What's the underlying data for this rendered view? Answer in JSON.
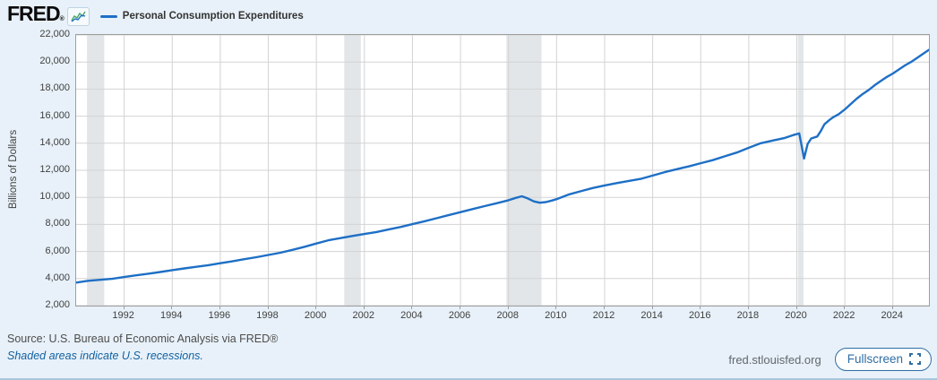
{
  "header": {
    "logo": "FRED",
    "registered": "®",
    "legend": {
      "series_label": "Personal Consumption Expenditures"
    }
  },
  "chart_data": {
    "type": "line",
    "title": "Personal Consumption Expenditures",
    "ylabel": "Billions of Dollars",
    "xlabel": "",
    "x_range": [
      1990.0,
      2025.5
    ],
    "y_range": [
      2000,
      22000
    ],
    "grid": true,
    "legend_position": "top-left",
    "line_color": "#1e6fc5",
    "grid_color": "#d3d3d3",
    "recession_color": "#e2e6e9",
    "plot_bg": "#ffffff",
    "y_ticks": [
      {
        "value": 2000,
        "label": "2,000"
      },
      {
        "value": 4000,
        "label": "4,000"
      },
      {
        "value": 6000,
        "label": "6,000"
      },
      {
        "value": 8000,
        "label": "8,000"
      },
      {
        "value": 10000,
        "label": "10,000"
      },
      {
        "value": 12000,
        "label": "12,000"
      },
      {
        "value": 14000,
        "label": "14,000"
      },
      {
        "value": 16000,
        "label": "16,000"
      },
      {
        "value": 18000,
        "label": "18,000"
      },
      {
        "value": 20000,
        "label": "20,000"
      },
      {
        "value": 22000,
        "label": "22,000"
      }
    ],
    "x_ticks": [
      {
        "value": 1992,
        "label": "1992"
      },
      {
        "value": 1994,
        "label": "1994"
      },
      {
        "value": 1996,
        "label": "1996"
      },
      {
        "value": 1998,
        "label": "1998"
      },
      {
        "value": 2000,
        "label": "2000"
      },
      {
        "value": 2002,
        "label": "2002"
      },
      {
        "value": 2004,
        "label": "2004"
      },
      {
        "value": 2006,
        "label": "2006"
      },
      {
        "value": 2008,
        "label": "2008"
      },
      {
        "value": 2010,
        "label": "2010"
      },
      {
        "value": 2012,
        "label": "2012"
      },
      {
        "value": 2014,
        "label": "2014"
      },
      {
        "value": 2016,
        "label": "2016"
      },
      {
        "value": 2018,
        "label": "2018"
      },
      {
        "value": 2020,
        "label": "2020"
      },
      {
        "value": 2022,
        "label": "2022"
      },
      {
        "value": 2024,
        "label": "2024"
      }
    ],
    "recession_bands": [
      [
        1990.45,
        1991.17
      ],
      [
        2001.16,
        2001.85
      ],
      [
        2007.91,
        2009.37
      ],
      [
        2020.05,
        2020.28
      ]
    ],
    "series": [
      {
        "name": "Personal Consumption Expenditures",
        "points": [
          [
            1990.0,
            3700
          ],
          [
            1990.5,
            3835
          ],
          [
            1991.0,
            3910
          ],
          [
            1991.5,
            3980
          ],
          [
            1992.0,
            4110
          ],
          [
            1992.5,
            4237
          ],
          [
            1993.0,
            4360
          ],
          [
            1993.5,
            4483
          ],
          [
            1994.0,
            4620
          ],
          [
            1994.5,
            4751
          ],
          [
            1995.0,
            4870
          ],
          [
            1995.5,
            4987
          ],
          [
            1996.0,
            5130
          ],
          [
            1996.5,
            5274
          ],
          [
            1997.0,
            5430
          ],
          [
            1997.5,
            5576
          ],
          [
            1998.0,
            5740
          ],
          [
            1998.5,
            5907
          ],
          [
            1999.0,
            6120
          ],
          [
            1999.5,
            6342
          ],
          [
            2000.0,
            6590
          ],
          [
            2000.5,
            6830
          ],
          [
            2001.0,
            6990
          ],
          [
            2001.5,
            7149
          ],
          [
            2002.0,
            7290
          ],
          [
            2002.5,
            7439
          ],
          [
            2003.0,
            7620
          ],
          [
            2003.5,
            7807
          ],
          [
            2004.0,
            8020
          ],
          [
            2004.5,
            8232
          ],
          [
            2005.0,
            8460
          ],
          [
            2005.5,
            8681
          ],
          [
            2006.0,
            8910
          ],
          [
            2006.5,
            9132
          ],
          [
            2007.0,
            9350
          ],
          [
            2007.5,
            9566
          ],
          [
            2008.0,
            9790
          ],
          [
            2008.3,
            9960
          ],
          [
            2008.55,
            10080
          ],
          [
            2008.8,
            9920
          ],
          [
            2009.05,
            9700
          ],
          [
            2009.3,
            9600
          ],
          [
            2009.55,
            9650
          ],
          [
            2009.8,
            9760
          ],
          [
            2010.0,
            9870
          ],
          [
            2010.5,
            10202
          ],
          [
            2011.0,
            10450
          ],
          [
            2011.5,
            10689
          ],
          [
            2012.0,
            10880
          ],
          [
            2012.5,
            11051
          ],
          [
            2013.0,
            11210
          ],
          [
            2013.5,
            11361
          ],
          [
            2014.0,
            11610
          ],
          [
            2014.5,
            11864
          ],
          [
            2015.0,
            12080
          ],
          [
            2015.5,
            12285
          ],
          [
            2016.0,
            12520
          ],
          [
            2016.5,
            12748
          ],
          [
            2017.0,
            13030
          ],
          [
            2017.5,
            13312
          ],
          [
            2018.0,
            13660
          ],
          [
            2018.5,
            13999
          ],
          [
            2019.0,
            14200
          ],
          [
            2019.5,
            14392
          ],
          [
            2019.85,
            14600
          ],
          [
            2020.1,
            14720
          ],
          [
            2020.3,
            12870
          ],
          [
            2020.45,
            13950
          ],
          [
            2020.6,
            14350
          ],
          [
            2020.85,
            14500
          ],
          [
            2021.0,
            14900
          ],
          [
            2021.15,
            15400
          ],
          [
            2021.35,
            15700
          ],
          [
            2021.5,
            15903
          ],
          [
            2021.75,
            16150
          ],
          [
            2022.0,
            16500
          ],
          [
            2022.25,
            16900
          ],
          [
            2022.5,
            17300
          ],
          [
            2022.75,
            17650
          ],
          [
            2023.0,
            17950
          ],
          [
            2023.25,
            18300
          ],
          [
            2023.5,
            18600
          ],
          [
            2023.75,
            18900
          ],
          [
            2024.0,
            19150
          ],
          [
            2024.25,
            19450
          ],
          [
            2024.5,
            19750
          ],
          [
            2024.75,
            20000
          ],
          [
            2025.0,
            20300
          ],
          [
            2025.25,
            20600
          ],
          [
            2025.5,
            20900
          ]
        ]
      }
    ]
  },
  "footer": {
    "source": "Source: U.S. Bureau of Economic Analysis via FRED®",
    "recession_note": "Shaded areas indicate U.S. recessions.",
    "site": "fred.stlouisfed.org",
    "fullscreen_label": "Fullscreen"
  }
}
